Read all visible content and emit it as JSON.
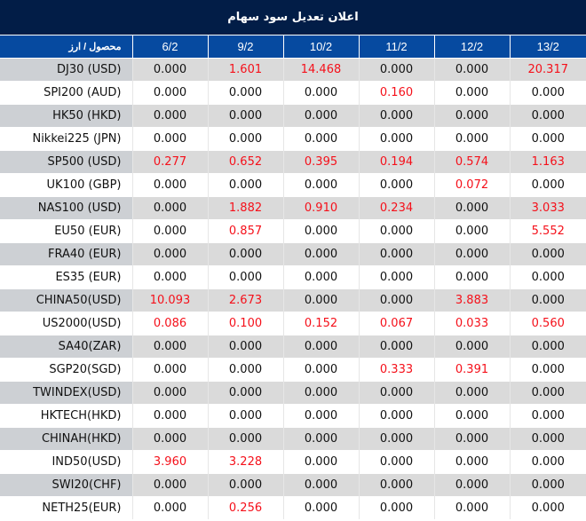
{
  "title": "اعلان تعديل سود سهام",
  "header": {
    "first_column": "محصول / ارز",
    "dates": [
      "6/2",
      "9/2",
      "10/2",
      "11/2",
      "12/2",
      "13/2"
    ]
  },
  "colors": {
    "title_bg": "#021d47",
    "header_bg": "#064aa0",
    "shaded_row_bg": "#dadada",
    "shaded_first_cell_bg": "#cdd0d4",
    "positive_value": "#f5101a",
    "zero_value": "#111111"
  },
  "rows": [
    {
      "product": "DJ30 (USD)",
      "values": [
        "0.000",
        "1.601",
        "14.468",
        "0.000",
        "0.000",
        "20.317"
      ]
    },
    {
      "product": "SPI200 (AUD)",
      "values": [
        "0.000",
        "0.000",
        "0.000",
        "0.160",
        "0.000",
        "0.000"
      ]
    },
    {
      "product": "HK50 (HKD)",
      "values": [
        "0.000",
        "0.000",
        "0.000",
        "0.000",
        "0.000",
        "0.000"
      ]
    },
    {
      "product": "Nikkei225 (JPN)",
      "values": [
        "0.000",
        "0.000",
        "0.000",
        "0.000",
        "0.000",
        "0.000"
      ]
    },
    {
      "product": "SP500 (USD)",
      "values": [
        "0.277",
        "0.652",
        "0.395",
        "0.194",
        "0.574",
        "1.163"
      ]
    },
    {
      "product": "UK100 (GBP)",
      "values": [
        "0.000",
        "0.000",
        "0.000",
        "0.000",
        "0.072",
        "0.000"
      ]
    },
    {
      "product": "NAS100 (USD)",
      "values": [
        "0.000",
        "1.882",
        "0.910",
        "0.234",
        "0.000",
        "3.033"
      ]
    },
    {
      "product": "EU50 (EUR)",
      "values": [
        "0.000",
        "0.857",
        "0.000",
        "0.000",
        "0.000",
        "5.552"
      ]
    },
    {
      "product": "FRA40 (EUR)",
      "values": [
        "0.000",
        "0.000",
        "0.000",
        "0.000",
        "0.000",
        "0.000"
      ]
    },
    {
      "product": "ES35 (EUR)",
      "values": [
        "0.000",
        "0.000",
        "0.000",
        "0.000",
        "0.000",
        "0.000"
      ]
    },
    {
      "product": "CHINA50(USD)",
      "values": [
        "10.093",
        "2.673",
        "0.000",
        "0.000",
        "3.883",
        "0.000"
      ]
    },
    {
      "product": "US2000(USD)",
      "values": [
        "0.086",
        "0.100",
        "0.152",
        "0.067",
        "0.033",
        "0.560"
      ]
    },
    {
      "product": "SA40(ZAR)",
      "values": [
        "0.000",
        "0.000",
        "0.000",
        "0.000",
        "0.000",
        "0.000"
      ]
    },
    {
      "product": "SGP20(SGD)",
      "values": [
        "0.000",
        "0.000",
        "0.000",
        "0.333",
        "0.391",
        "0.000"
      ]
    },
    {
      "product": "TWINDEX(USD)",
      "values": [
        "0.000",
        "0.000",
        "0.000",
        "0.000",
        "0.000",
        "0.000"
      ]
    },
    {
      "product": "HKTECH(HKD)",
      "values": [
        "0.000",
        "0.000",
        "0.000",
        "0.000",
        "0.000",
        "0.000"
      ]
    },
    {
      "product": "CHINAH(HKD)",
      "values": [
        "0.000",
        "0.000",
        "0.000",
        "0.000",
        "0.000",
        "0.000"
      ]
    },
    {
      "product": "IND50(USD)",
      "values": [
        "3.960",
        "3.228",
        "0.000",
        "0.000",
        "0.000",
        "0.000"
      ]
    },
    {
      "product": "SWI20(CHF)",
      "values": [
        "0.000",
        "0.000",
        "0.000",
        "0.000",
        "0.000",
        "0.000"
      ]
    },
    {
      "product": "NETH25(EUR)",
      "values": [
        "0.000",
        "0.256",
        "0.000",
        "0.000",
        "0.000",
        "0.000"
      ]
    }
  ]
}
